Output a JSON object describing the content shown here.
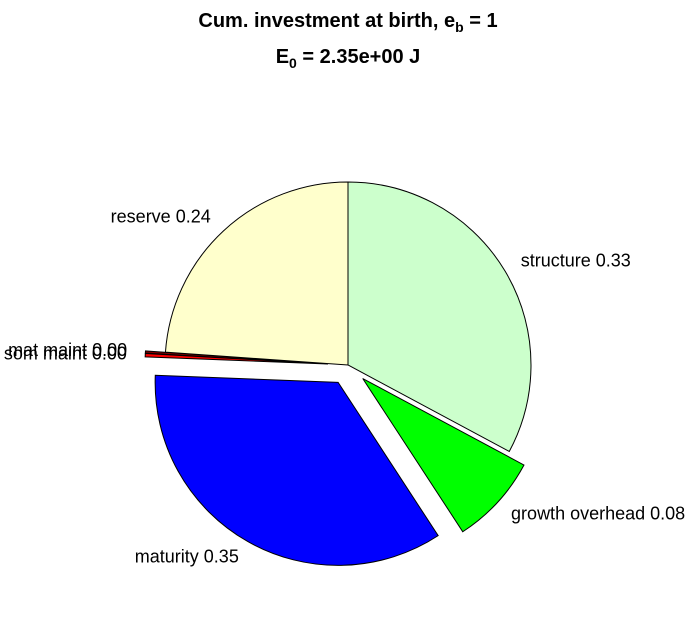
{
  "chart_data": {
    "type": "pie",
    "title": {
      "text": "Cum. investment at birth, e",
      "subscript": "b",
      "suffix": " = 1"
    },
    "subtitle": {
      "text": "E",
      "subscript": "0",
      "suffix": " = 2.35e+00 J"
    },
    "categories": [
      "structure",
      "growth overhead",
      "maturity",
      "som maint",
      "mat maint",
      "reserve"
    ],
    "values": [
      0.33,
      0.08,
      0.35,
      0.003,
      0.002,
      0.24
    ],
    "value_labels": [
      "0.33",
      "0.08",
      "0.35",
      "0.00",
      "0.00",
      "0.24"
    ],
    "colors": [
      "#ccffcc",
      "#00ff00",
      "#0000ff",
      "#ff0000",
      "#800000",
      "#ffffcc"
    ],
    "explode": [
      false,
      true,
      true,
      true,
      true,
      false
    ]
  }
}
